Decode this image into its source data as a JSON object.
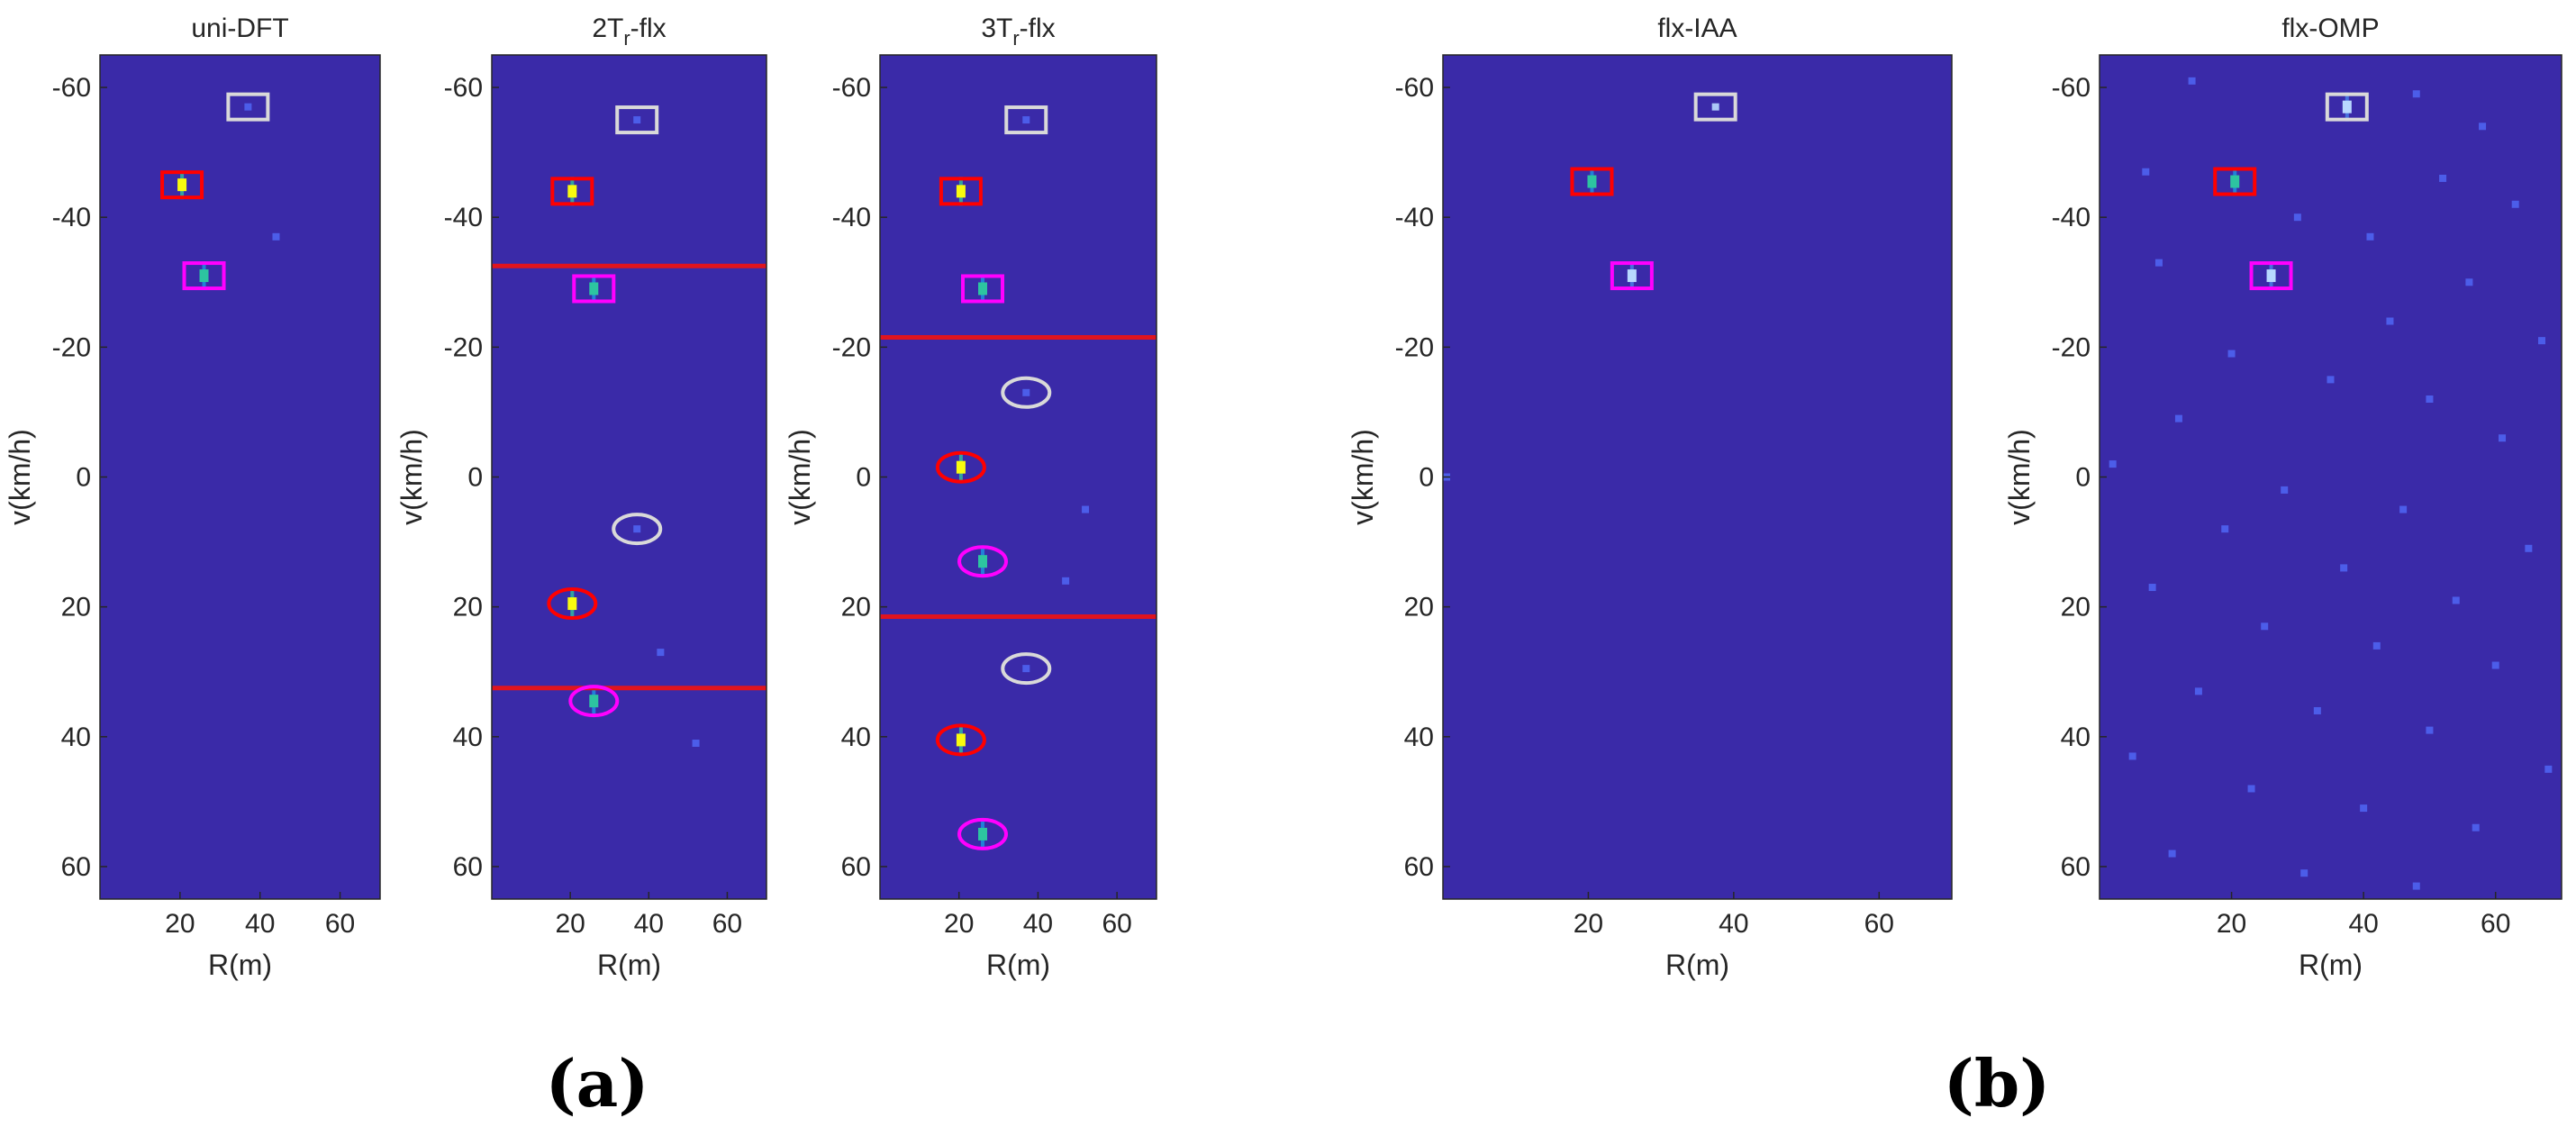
{
  "figure_labels": [
    "(a)",
    "(b)"
  ],
  "chart_data": [
    {
      "type": "heatmap",
      "title": "uni-DFT",
      "title_parts": [
        {
          "t": "uni-DFT"
        }
      ],
      "xlabel": "R(m)",
      "ylabel": "v(km/h)",
      "xlim": [
        0,
        70
      ],
      "ylim": [
        -65,
        65
      ],
      "y_reversed": true,
      "xticks": [
        20,
        40,
        60
      ],
      "yticks": [
        -60,
        -40,
        -20,
        0,
        20,
        40,
        60
      ],
      "background_color": "#3a2aa8",
      "ambiguity_lines": [],
      "targets": [
        {
          "r": 37,
          "v": -57,
          "marker": "rect",
          "color": "#d9d9d9"
        },
        {
          "r": 20.5,
          "v": -45,
          "marker": "rect",
          "color": "#ff0000"
        },
        {
          "r": 26,
          "v": -31,
          "marker": "rect",
          "color": "#ff00ff"
        }
      ],
      "hotspots": [
        {
          "r": 37,
          "v": -57,
          "level": 0.25
        },
        {
          "r": 20.5,
          "v": -45,
          "level": 1.0
        },
        {
          "r": 26,
          "v": -31,
          "level": 0.7
        },
        {
          "r": 44,
          "v": -37,
          "level": 0.2
        }
      ]
    },
    {
      "type": "heatmap",
      "title": "2T r -flx",
      "title_parts": [
        {
          "t": "2T"
        },
        {
          "t": "r",
          "sub": true
        },
        {
          "t": "-flx"
        }
      ],
      "xlabel": "R(m)",
      "ylabel": "v(km/h)",
      "xlim": [
        0,
        70
      ],
      "ylim": [
        -65,
        65
      ],
      "y_reversed": true,
      "xticks": [
        20,
        40,
        60
      ],
      "yticks": [
        -60,
        -40,
        -20,
        0,
        20,
        40,
        60
      ],
      "background_color": "#3a2aa8",
      "ambiguity_lines": [
        -32.5,
        32.5
      ],
      "targets": [
        {
          "r": 37,
          "v": -55,
          "marker": "rect",
          "color": "#d9d9d9"
        },
        {
          "r": 20.5,
          "v": -44,
          "marker": "rect",
          "color": "#ff0000"
        },
        {
          "r": 26,
          "v": -29,
          "marker": "rect",
          "color": "#ff00ff"
        },
        {
          "r": 37,
          "v": 8,
          "marker": "ellipse",
          "color": "#d9d9d9"
        },
        {
          "r": 20.5,
          "v": 19.5,
          "marker": "ellipse",
          "color": "#ff0000"
        },
        {
          "r": 26,
          "v": 34.5,
          "marker": "ellipse",
          "color": "#ff00ff"
        }
      ],
      "hotspots": [
        {
          "r": 37,
          "v": -55,
          "level": 0.25
        },
        {
          "r": 20.5,
          "v": -44,
          "level": 1.0
        },
        {
          "r": 26,
          "v": -29,
          "level": 0.7
        },
        {
          "r": 37,
          "v": 8,
          "level": 0.25
        },
        {
          "r": 20.5,
          "v": 19.5,
          "level": 1.0
        },
        {
          "r": 26,
          "v": 34.5,
          "level": 0.7
        },
        {
          "r": 43,
          "v": 27,
          "level": 0.2
        },
        {
          "r": 52,
          "v": 41,
          "level": 0.2
        }
      ]
    },
    {
      "type": "heatmap",
      "title": "3T r -flx",
      "title_parts": [
        {
          "t": "3T"
        },
        {
          "t": "r",
          "sub": true
        },
        {
          "t": "-flx"
        }
      ],
      "xlabel": "R(m)",
      "ylabel": "v(km/h)",
      "xlim": [
        0,
        70
      ],
      "ylim": [
        -65,
        65
      ],
      "y_reversed": true,
      "xticks": [
        20,
        40,
        60
      ],
      "yticks": [
        -60,
        -40,
        -20,
        0,
        20,
        40,
        60
      ],
      "background_color": "#3a2aa8",
      "ambiguity_lines": [
        -21.5,
        21.5
      ],
      "targets": [
        {
          "r": 37,
          "v": -55,
          "marker": "rect",
          "color": "#d9d9d9"
        },
        {
          "r": 20.5,
          "v": -44,
          "marker": "rect",
          "color": "#ff0000"
        },
        {
          "r": 26,
          "v": -29,
          "marker": "rect",
          "color": "#ff00ff"
        },
        {
          "r": 37,
          "v": -13,
          "marker": "ellipse",
          "color": "#d9d9d9"
        },
        {
          "r": 20.5,
          "v": -1.5,
          "marker": "ellipse",
          "color": "#ff0000"
        },
        {
          "r": 26,
          "v": 13,
          "marker": "ellipse",
          "color": "#ff00ff"
        },
        {
          "r": 37,
          "v": 29.5,
          "marker": "ellipse",
          "color": "#d9d9d9"
        },
        {
          "r": 20.5,
          "v": 40.5,
          "marker": "ellipse",
          "color": "#ff0000"
        },
        {
          "r": 26,
          "v": 55,
          "marker": "ellipse",
          "color": "#ff00ff"
        }
      ],
      "hotspots": [
        {
          "r": 37,
          "v": -55,
          "level": 0.25
        },
        {
          "r": 20.5,
          "v": -44,
          "level": 1.0
        },
        {
          "r": 26,
          "v": -29,
          "level": 0.7
        },
        {
          "r": 37,
          "v": -13,
          "level": 0.25
        },
        {
          "r": 20.5,
          "v": -1.5,
          "level": 1.0
        },
        {
          "r": 26,
          "v": 13,
          "level": 0.7
        },
        {
          "r": 37,
          "v": 29.5,
          "level": 0.25
        },
        {
          "r": 20.5,
          "v": 40.5,
          "level": 1.0
        },
        {
          "r": 26,
          "v": 55,
          "level": 0.7
        },
        {
          "r": 52,
          "v": 5,
          "level": 0.15
        },
        {
          "r": 47,
          "v": 16,
          "level": 0.15
        }
      ]
    },
    {
      "type": "heatmap",
      "title": "flx-IAA",
      "title_parts": [
        {
          "t": "flx-IAA"
        }
      ],
      "xlabel": "R(m)",
      "ylabel": "v(km/h)",
      "xlim": [
        0,
        70
      ],
      "ylim": [
        -65,
        65
      ],
      "y_reversed": true,
      "xticks": [
        20,
        40,
        60
      ],
      "yticks": [
        -60,
        -40,
        -20,
        0,
        20,
        40,
        60
      ],
      "background_color": "#3a2aa8",
      "ambiguity_lines": [],
      "targets": [
        {
          "r": 37.5,
          "v": -57,
          "marker": "rect",
          "color": "#d9d9d9"
        },
        {
          "r": 20.5,
          "v": -45.5,
          "marker": "rect",
          "color": "#ff0000"
        },
        {
          "r": 26,
          "v": -31,
          "marker": "rect",
          "color": "#ff00ff"
        }
      ],
      "hotspots": [
        {
          "r": 37.5,
          "v": -57,
          "level": 0.4
        },
        {
          "r": 20.5,
          "v": -45.5,
          "level": 0.6
        },
        {
          "r": 26,
          "v": -31,
          "level": 0.5
        },
        {
          "r": 0.5,
          "v": 0,
          "level": 0.3
        }
      ]
    },
    {
      "type": "heatmap",
      "title": "flx-OMP",
      "title_parts": [
        {
          "t": "flx-OMP"
        }
      ],
      "xlabel": "R(m)",
      "ylabel": "v(km/h)",
      "xlim": [
        0,
        70
      ],
      "ylim": [
        -65,
        65
      ],
      "y_reversed": true,
      "xticks": [
        20,
        40,
        60
      ],
      "yticks": [
        -60,
        -40,
        -20,
        0,
        20,
        40,
        60
      ],
      "background_color": "#3a2aa8",
      "ambiguity_lines": [],
      "targets": [
        {
          "r": 37.5,
          "v": -57,
          "marker": "rect",
          "color": "#d9d9d9"
        },
        {
          "r": 20.5,
          "v": -45.5,
          "marker": "rect",
          "color": "#ff0000"
        },
        {
          "r": 26,
          "v": -31,
          "marker": "rect",
          "color": "#ff00ff"
        }
      ],
      "hotspots": [
        {
          "r": 37.5,
          "v": -57,
          "level": 0.5
        },
        {
          "r": 20.5,
          "v": -45.5,
          "level": 0.6
        },
        {
          "r": 26,
          "v": -31,
          "level": 0.5
        },
        {
          "r": 14,
          "v": -61,
          "level": 0.15
        },
        {
          "r": 48,
          "v": -59,
          "level": 0.15
        },
        {
          "r": 58,
          "v": -54,
          "level": 0.15
        },
        {
          "r": 7,
          "v": -47,
          "level": 0.15
        },
        {
          "r": 52,
          "v": -46,
          "level": 0.15
        },
        {
          "r": 63,
          "v": -42,
          "level": 0.15
        },
        {
          "r": 30,
          "v": -40,
          "level": 0.15
        },
        {
          "r": 41,
          "v": -37,
          "level": 0.15
        },
        {
          "r": 9,
          "v": -33,
          "level": 0.15
        },
        {
          "r": 56,
          "v": -30,
          "level": 0.15
        },
        {
          "r": 44,
          "v": -24,
          "level": 0.15
        },
        {
          "r": 67,
          "v": -21,
          "level": 0.15
        },
        {
          "r": 20,
          "v": -19,
          "level": 0.15
        },
        {
          "r": 35,
          "v": -15,
          "level": 0.15
        },
        {
          "r": 50,
          "v": -12,
          "level": 0.15
        },
        {
          "r": 12,
          "v": -9,
          "level": 0.15
        },
        {
          "r": 61,
          "v": -6,
          "level": 0.15
        },
        {
          "r": 2,
          "v": -2,
          "level": 0.2
        },
        {
          "r": 28,
          "v": 2,
          "level": 0.15
        },
        {
          "r": 46,
          "v": 5,
          "level": 0.15
        },
        {
          "r": 19,
          "v": 8,
          "level": 0.15
        },
        {
          "r": 65,
          "v": 11,
          "level": 0.15
        },
        {
          "r": 37,
          "v": 14,
          "level": 0.15
        },
        {
          "r": 8,
          "v": 17,
          "level": 0.15
        },
        {
          "r": 54,
          "v": 19,
          "level": 0.15
        },
        {
          "r": 25,
          "v": 23,
          "level": 0.15
        },
        {
          "r": 42,
          "v": 26,
          "level": 0.15
        },
        {
          "r": 60,
          "v": 29,
          "level": 0.15
        },
        {
          "r": 15,
          "v": 33,
          "level": 0.15
        },
        {
          "r": 33,
          "v": 36,
          "level": 0.15
        },
        {
          "r": 50,
          "v": 39,
          "level": 0.15
        },
        {
          "r": 5,
          "v": 43,
          "level": 0.15
        },
        {
          "r": 68,
          "v": 45,
          "level": 0.15
        },
        {
          "r": 23,
          "v": 48,
          "level": 0.15
        },
        {
          "r": 40,
          "v": 51,
          "level": 0.15
        },
        {
          "r": 57,
          "v": 54,
          "level": 0.15
        },
        {
          "r": 11,
          "v": 58,
          "level": 0.15
        },
        {
          "r": 31,
          "v": 61,
          "level": 0.15
        },
        {
          "r": 48,
          "v": 63,
          "level": 0.15
        }
      ]
    }
  ]
}
